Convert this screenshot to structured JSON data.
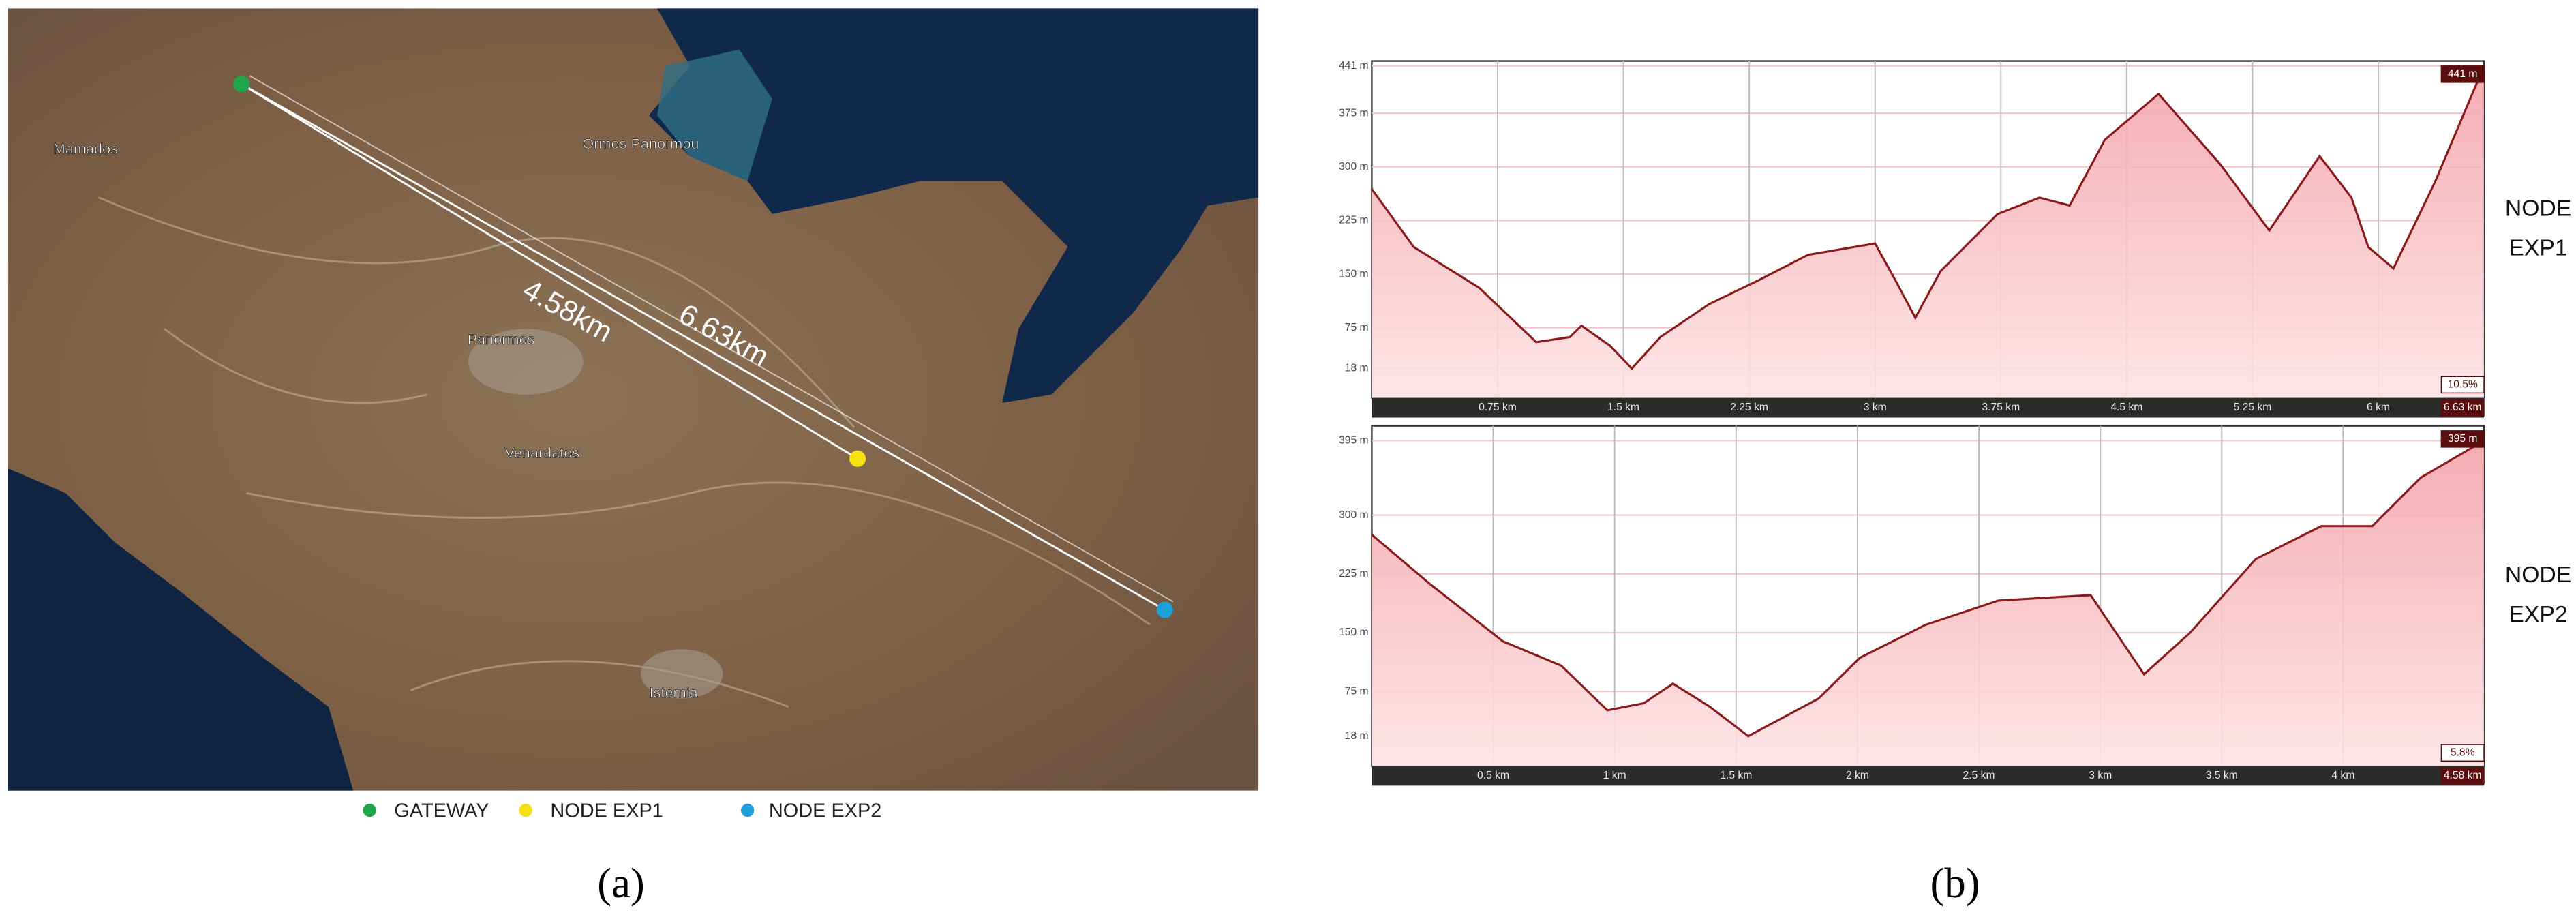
{
  "map": {
    "places": [
      "Mamados",
      "Ormos Panormou",
      "Panormos",
      "Venardatos",
      "Isternia"
    ],
    "distances": [
      "4.58km",
      "6.63km"
    ],
    "legend": [
      "GATEWAY",
      "NODE EXP1",
      "NODE EXP2"
    ]
  },
  "panel_labels": [
    "(a)",
    "(b)"
  ],
  "chart_data": [
    {
      "type": "area",
      "color": "#8b1a1a",
      "grid": true,
      "label_lines": [
        "NODE",
        "EXP1"
      ],
      "annotations": [
        "441 m",
        "10.5%",
        "6.63 km"
      ],
      "x": [
        0,
        0.25,
        0.64,
        0.98,
        1.18,
        1.25,
        1.42,
        1.55,
        1.72,
        2.01,
        2.31,
        2.6,
        3.0,
        3.12,
        3.24,
        3.39,
        3.73,
        3.98,
        4.16,
        4.37,
        4.69,
        5.06,
        5.35,
        5.65,
        5.84,
        5.94,
        6.09,
        6.34,
        6.63
      ],
      "values": [
        269,
        188,
        131,
        55,
        62,
        78,
        50,
        18,
        62,
        108,
        142,
        177,
        193,
        142,
        89,
        154,
        234,
        257,
        246,
        338,
        402,
        303,
        211,
        315,
        257,
        188,
        158,
        280,
        441
      ],
      "xlim": [
        0,
        6.63
      ],
      "ylim": [
        -23,
        448
      ],
      "xticks": [
        {
          "value": 0.75,
          "label": "0.75 km"
        },
        {
          "value": 1.5,
          "label": "1.5 km"
        },
        {
          "value": 2.25,
          "label": "2.25 km"
        },
        {
          "value": 3,
          "label": "3 km"
        },
        {
          "value": 3.75,
          "label": "3.75 km"
        },
        {
          "value": 4.5,
          "label": "4.5 km"
        },
        {
          "value": 5.25,
          "label": "5.25 km"
        },
        {
          "value": 6,
          "label": "6 km"
        }
      ],
      "yticks": [
        {
          "value": 18,
          "label": "18 m"
        },
        {
          "value": 75,
          "label": "75 m"
        },
        {
          "value": 150,
          "label": "150 m"
        },
        {
          "value": 225,
          "label": "225 m"
        },
        {
          "value": 300,
          "label": "300 m"
        },
        {
          "value": 375,
          "label": "375 m"
        },
        {
          "value": 441,
          "label": "441 m"
        }
      ]
    },
    {
      "type": "area",
      "color": "#8b1a1a",
      "grid": true,
      "label_lines": [
        "NODE",
        "EXP2"
      ],
      "annotations": [
        "395 m",
        "5.8%",
        "4.58 km"
      ],
      "x": [
        0,
        0.24,
        0.54,
        0.78,
        0.97,
        1.12,
        1.24,
        1.39,
        1.55,
        1.84,
        2.01,
        2.28,
        2.58,
        2.96,
        3.18,
        3.37,
        3.64,
        3.91,
        4.12,
        4.32,
        4.58
      ],
      "values": [
        275,
        212,
        139,
        108,
        51,
        60,
        85,
        56,
        18,
        66,
        118,
        160,
        191,
        198,
        97,
        150,
        244,
        286,
        286,
        348,
        395
      ],
      "xlim": [
        0,
        4.58
      ],
      "ylim": [
        -20,
        414
      ],
      "xticks": [
        {
          "value": 0.5,
          "label": "0.5 km"
        },
        {
          "value": 1,
          "label": "1 km"
        },
        {
          "value": 1.5,
          "label": "1.5 km"
        },
        {
          "value": 2,
          "label": "2 km"
        },
        {
          "value": 2.5,
          "label": "2.5 km"
        },
        {
          "value": 3,
          "label": "3 km"
        },
        {
          "value": 3.5,
          "label": "3.5 km"
        },
        {
          "value": 4,
          "label": "4 km"
        }
      ],
      "yticks": [
        {
          "value": 18,
          "label": "18 m"
        },
        {
          "value": 75,
          "label": "75 m"
        },
        {
          "value": 150,
          "label": "150 m"
        },
        {
          "value": 225,
          "label": "225 m"
        },
        {
          "value": 300,
          "label": "300 m"
        },
        {
          "value": 395,
          "label": "395 m"
        }
      ]
    }
  ]
}
